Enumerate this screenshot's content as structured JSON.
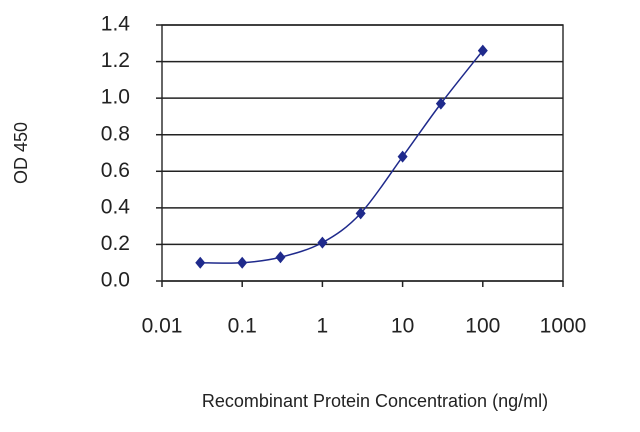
{
  "chart_data": {
    "type": "line",
    "x_label": "Recombinant Protein Concentration (ng/ml)",
    "y_label": "OD 450",
    "log_x": true,
    "grid": true,
    "color": "#1f2a8c",
    "x": [
      0.03,
      0.1,
      0.3,
      1,
      3,
      10,
      30,
      100
    ],
    "values": [
      0.1,
      0.1,
      0.13,
      0.21,
      0.37,
      0.68,
      0.97,
      1.26
    ],
    "xlim": [
      0.01,
      1000
    ],
    "xticks": [
      0.01,
      0.1,
      1,
      10,
      100,
      1000
    ],
    "ylim": [
      0,
      1.4
    ],
    "yticks": [
      {
        "value": 0,
        "label": "0.0"
      },
      0.2,
      0.4,
      0.6,
      0.8,
      {
        "value": 1,
        "label": "1.0"
      },
      1.2,
      1.4
    ]
  }
}
